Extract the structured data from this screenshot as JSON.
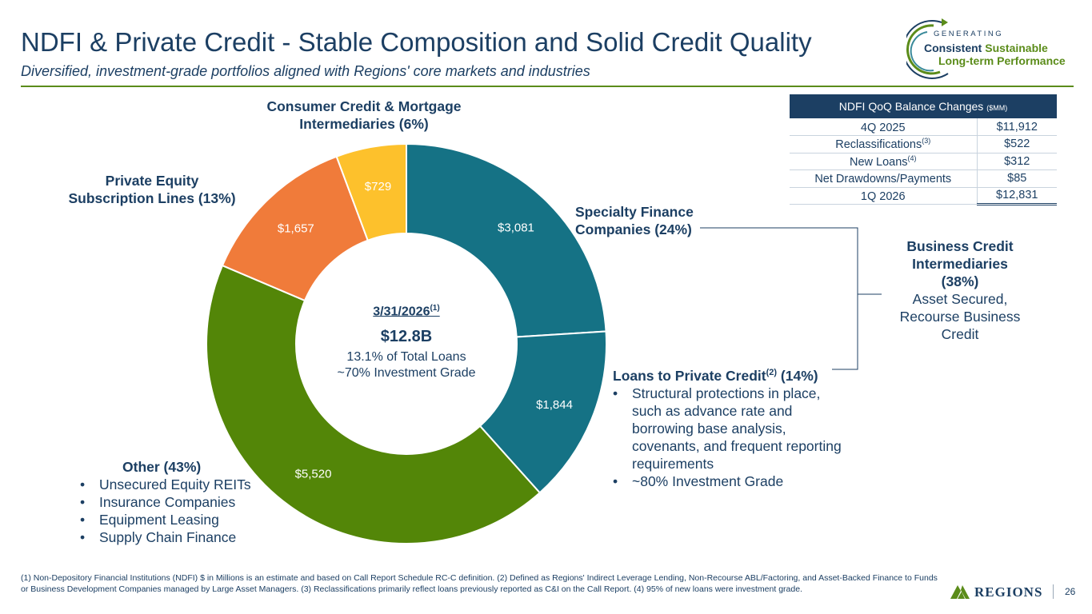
{
  "header": {
    "title": "NDFI & Private Credit - Stable Composition and Solid Credit Quality",
    "subtitle": "Diversified, investment-grade portfolios aligned with Regions' core markets and industries"
  },
  "logo": {
    "generating": "GENERATING",
    "consistent": "Consistent",
    "sustainable": "Sustainable",
    "long_term": "Long-term Performance"
  },
  "chart_data": {
    "type": "pie",
    "categories": [
      "Specialty Finance Companies",
      "Loans to Private Credit",
      "Other",
      "Private Equity Subscription Lines",
      "Consumer Credit & Mortgage Intermediaries"
    ],
    "values": [
      3081,
      1844,
      5520,
      1657,
      729
    ],
    "value_labels": [
      "$3,081",
      "$1,844",
      "$5,520",
      "$1,657",
      "$729"
    ],
    "colors": [
      "#157285",
      "#157285",
      "#538608",
      "#f07b3a",
      "#fdc12c"
    ],
    "donut": true
  },
  "labels": {
    "consumer": "Consumer Credit & Mortgage Intermediaries (6%)",
    "pe_line1": "Private Equity",
    "pe_line2": "Subscription Lines (13%)",
    "specialty_line1": "Specialty Finance",
    "specialty_line2": "Companies (24%)",
    "lpc_name": "Loans to Private Credit",
    "lpc_sup": "(2)",
    "lpc_pct": "(14%)",
    "lpc_bullets": [
      "Structural protections in place, such as advance rate and borrowing base analysis, covenants, and frequent reporting requirements",
      "~80% Investment Grade"
    ],
    "other_name": "Other (43%)",
    "other_bullets": [
      "Unsecured Equity REITs",
      "Insurance Companies",
      "Equipment Leasing",
      "Supply Chain Finance"
    ]
  },
  "center": {
    "date": "3/31/2026",
    "date_sup": "(1)",
    "total": "$12.8B",
    "line1": "13.1% of Total Loans",
    "line2": "~70% Investment Grade"
  },
  "bci": {
    "title_line1": "Business Credit",
    "title_line2": "Intermediaries",
    "title_line3": "(38%)",
    "body": "Asset Secured, Recourse Business Credit"
  },
  "table": {
    "header": "NDFI QoQ Balance Changes",
    "unit": "($MM)",
    "rows": [
      {
        "label": "4Q 2025",
        "sup": "",
        "value": "$11,912"
      },
      {
        "label": "Reclassifications",
        "sup": "(3)",
        "value": "$522"
      },
      {
        "label": "New Loans",
        "sup": "(4)",
        "value": "$312"
      },
      {
        "label": "Net Drawdowns/Payments",
        "sup": "",
        "value": "$85"
      },
      {
        "label": "1Q 2026",
        "sup": "",
        "value": "$12,831"
      }
    ]
  },
  "footnote": "(1) Non-Depository Financial Institutions (NDFI) $ in Millions is an estimate and based on Call Report Schedule RC-C definition.  (2) Defined as Regions' Indirect Leverage Lending, Non-Recourse ABL/Factoring, and Asset-Backed Finance to Funds or Business Development Companies managed by Large Asset Managers. (3) Reclassifications primarily reflect loans previously reported as C&I on the Call Report.  (4) 95% of new loans were investment grade.",
  "footer": {
    "brand": "REGIONS",
    "page": "26"
  }
}
